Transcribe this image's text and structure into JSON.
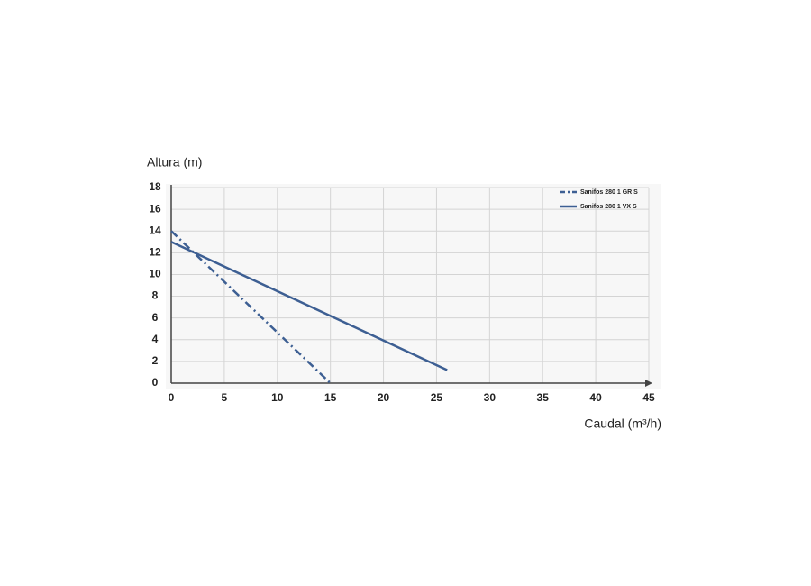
{
  "chart_data": {
    "type": "line",
    "y_label": "Altura (m)",
    "x_label": "Caudal (m³/h)",
    "xlim": [
      0,
      45
    ],
    "ylim": [
      0,
      18
    ],
    "xticks": [
      0,
      5,
      10,
      15,
      20,
      25,
      30,
      35,
      40,
      45
    ],
    "yticks": [
      0,
      2,
      4,
      6,
      8,
      10,
      12,
      14,
      16,
      18
    ],
    "grid": true,
    "legend": "upper right",
    "series": [
      {
        "name": "Sanifos 280 1 GR S",
        "color": "#3d5f93",
        "dash": "dashdot",
        "x": [
          0,
          15
        ],
        "values": [
          14,
          0
        ]
      },
      {
        "name": "Sanifos 280 1 VX S",
        "color": "#3d5f93",
        "dash": "solid",
        "x": [
          0,
          26
        ],
        "values": [
          13,
          1.2
        ]
      }
    ]
  }
}
